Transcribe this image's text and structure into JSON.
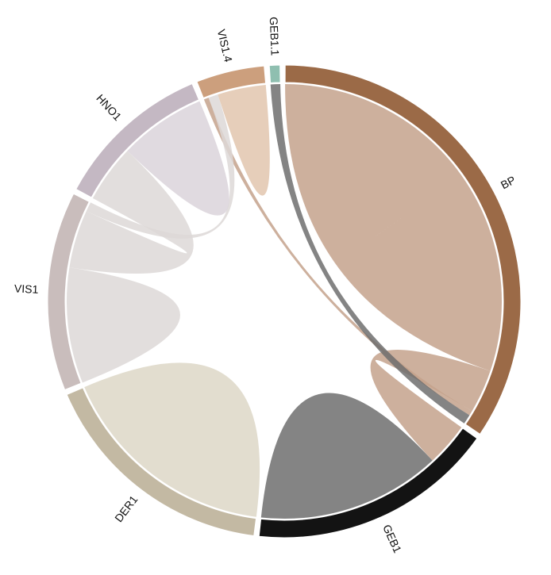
{
  "chart_data": {
    "type": "chord",
    "title": "",
    "groups": [
      {
        "name": "BP",
        "color": "#9b6a47",
        "ribbon_color": "#c4a28c"
      },
      {
        "name": "GEB1",
        "color": "#131313",
        "ribbon_color": "#6f6f6f"
      },
      {
        "name": "DER1",
        "color": "#c3b9a3",
        "ribbon_color": "#ddd7c7"
      },
      {
        "name": "VIS1",
        "color": "#c9bdbc",
        "ribbon_color": "#ddd8d7"
      },
      {
        "name": "HNO1",
        "color": "#c4b8c3",
        "ribbon_color": "#dbd4da"
      },
      {
        "name": "VIS1.4",
        "color": "#cc9f7d",
        "ribbon_color": "#e2c5ae"
      },
      {
        "name": "GEB1.1",
        "color": "#8fbfb0",
        "ribbon_color": "#8fbfb0"
      }
    ],
    "matrix": [
      [
        42,
        9,
        0,
        0,
        0,
        0,
        0
      ],
      [
        0,
        19,
        0,
        0,
        0,
        0,
        0
      ],
      [
        0,
        0,
        23,
        0,
        0,
        0,
        0
      ],
      [
        0,
        0,
        0,
        12,
        8,
        1,
        0
      ],
      [
        0,
        0,
        0,
        4,
        9,
        0,
        0
      ],
      [
        1,
        0,
        0,
        1,
        0,
        5,
        0
      ],
      [
        0,
        0,
        0,
        0,
        0,
        0,
        0
      ]
    ],
    "extra_links": [
      {
        "source": "BP",
        "target": "GEB1.1",
        "value": 2,
        "color": "#6f6f6f"
      }
    ]
  }
}
